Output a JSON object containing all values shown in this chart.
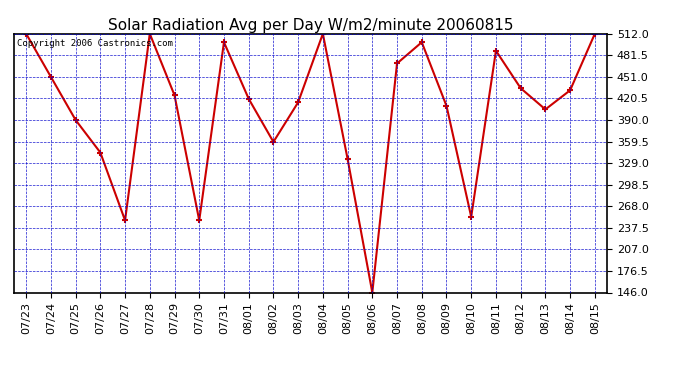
{
  "title": "Solar Radiation Avg per Day W/m2/minute 20060815",
  "copyright_text": "Copyright 2006 Castronics.com",
  "dates": [
    "07/23",
    "07/24",
    "07/25",
    "07/26",
    "07/27",
    "07/28",
    "07/29",
    "07/30",
    "07/31",
    "08/01",
    "08/02",
    "08/03",
    "08/04",
    "08/05",
    "08/06",
    "08/07",
    "08/08",
    "08/09",
    "08/10",
    "08/11",
    "08/12",
    "08/13",
    "08/14",
    "08/15"
  ],
  "values": [
    512,
    451,
    390,
    344,
    248,
    512,
    425,
    248,
    500,
    420,
    359,
    415,
    512,
    335,
    146,
    470,
    500,
    410,
    253,
    488,
    435,
    405,
    432,
    512
  ],
  "line_color": "#cc0000",
  "marker_color": "#cc0000",
  "bg_color": "#ffffff",
  "plot_bg_color": "#ffffff",
  "grid_color": "#0000cc",
  "title_color": "#000000",
  "y_min": 146.0,
  "y_max": 512.0,
  "y_ticks": [
    146.0,
    176.5,
    207.0,
    237.5,
    268.0,
    298.5,
    329.0,
    359.5,
    390.0,
    420.5,
    451.0,
    481.5,
    512.0
  ],
  "title_fontsize": 11,
  "tick_fontsize": 8,
  "copyright_fontsize": 6.5
}
